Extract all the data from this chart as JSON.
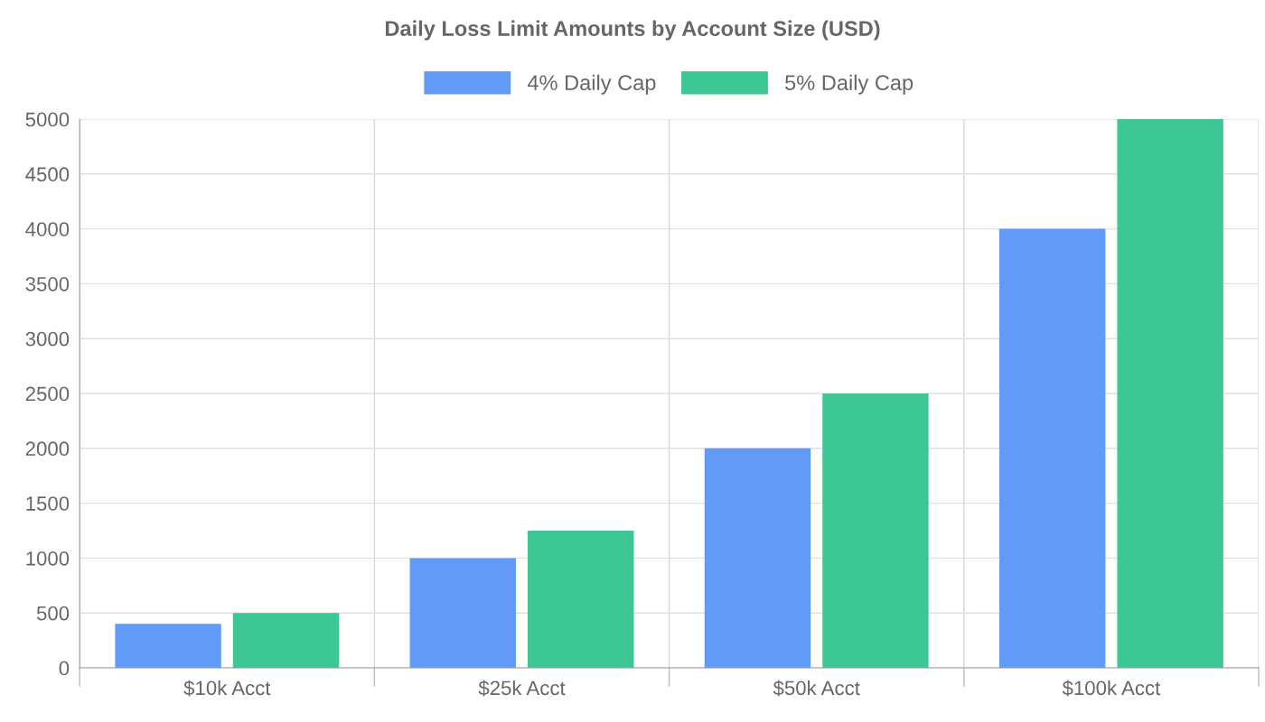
{
  "chart_data": {
    "type": "bar",
    "title": "Daily Loss Limit Amounts by Account Size (USD)",
    "categories": [
      "$10k Acct",
      "$25k Acct",
      "$50k Acct",
      "$100k Acct"
    ],
    "series": [
      {
        "name": "4% Daily Cap",
        "color": "#619bf7",
        "values": [
          400,
          1000,
          2000,
          4000
        ]
      },
      {
        "name": "5% Daily Cap",
        "color": "#3dc794",
        "values": [
          500,
          1250,
          2500,
          5000
        ]
      }
    ],
    "ylim": [
      0,
      5000
    ],
    "yticks": [
      0,
      500,
      1000,
      1500,
      2000,
      2500,
      3000,
      3500,
      4000,
      4500,
      5000
    ],
    "grid": true,
    "legend": "top"
  }
}
